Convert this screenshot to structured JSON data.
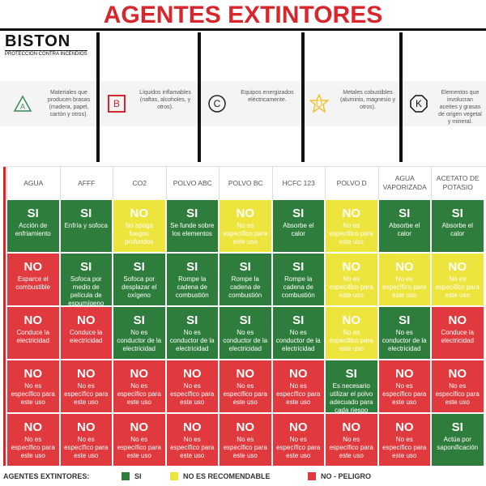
{
  "header": {
    "title": "AGENTES EXTINTORES",
    "logo": "BISTON",
    "logo_subtitle": "PROTECCION CONTRA INCENDIOS"
  },
  "classes": [
    {
      "letter": "A",
      "description": "Materiales que producen brasas (madera, papel, cartón y otros).",
      "color": "#3a8a5a"
    },
    {
      "letter": "B",
      "description": "Líquidos inflamables (naftas, alcoholes, y otros).",
      "color": "#d8262c"
    },
    {
      "letter": "C",
      "description": "Equipos energizados eléctricamente.",
      "color": "#222222"
    },
    {
      "letter": "D",
      "description": "Metales cobustibles (aluminio, magnesio y otros).",
      "color": "#f2c230"
    },
    {
      "letter": "K",
      "description": "Elementos que involucran aceites y grasas de origen vegetal y mineral.",
      "color": "#111111"
    }
  ],
  "table": {
    "columns": [
      "AGUA",
      "AFFF",
      "CO2",
      "POLVO ABC",
      "POLVO BC",
      "HCFC 123",
      "POLVO D",
      "AGUA VAPORIZADA",
      "ACETATO DE POTASIO"
    ],
    "rows": [
      [
        {
          "status": "SI",
          "text": "Acción de enfriamiento",
          "color": "#2f7d3c"
        },
        {
          "status": "SI",
          "text": "Enfría y sofoca",
          "color": "#2f7d3c"
        },
        {
          "status": "NO",
          "text": "No apaga fuegos profundos",
          "color": "#eee43e"
        },
        {
          "status": "SI",
          "text": "Se funde sobre los elementos",
          "color": "#2f7d3c"
        },
        {
          "status": "NO",
          "text": "No es específico para este uso",
          "color": "#eee43e"
        },
        {
          "status": "SI",
          "text": "Absorbe el calor",
          "color": "#2f7d3c"
        },
        {
          "status": "NO",
          "text": "No es específico para este uso",
          "color": "#eee43e"
        },
        {
          "status": "SI",
          "text": "Absorbe el calor",
          "color": "#2f7d3c"
        },
        {
          "status": "SI",
          "text": "Absorbe el calor",
          "color": "#2f7d3c"
        }
      ],
      [
        {
          "status": "NO",
          "text": "Esparce el combustible",
          "color": "#e03a3e"
        },
        {
          "status": "SI",
          "text": "Sofoca por medio de película de espumígeno",
          "color": "#2f7d3c"
        },
        {
          "status": "SI",
          "text": "Sofoca por desplazar el oxígeno",
          "color": "#2f7d3c"
        },
        {
          "status": "SI",
          "text": "Rompe la cadena de combustión",
          "color": "#2f7d3c"
        },
        {
          "status": "SI",
          "text": "Rompe la cadena de combustión",
          "color": "#2f7d3c"
        },
        {
          "status": "SI",
          "text": "Rompe la cadena de combustión",
          "color": "#2f7d3c"
        },
        {
          "status": "NO",
          "text": "No es específico para este uso",
          "color": "#eee43e"
        },
        {
          "status": "NO",
          "text": "No es específico para este uso",
          "color": "#eee43e"
        },
        {
          "status": "NO",
          "text": "No es específico para este uso",
          "color": "#eee43e"
        }
      ],
      [
        {
          "status": "NO",
          "text": "Conduce la electricidad",
          "color": "#e03a3e"
        },
        {
          "status": "NO",
          "text": "Conduce la electricidad",
          "color": "#e03a3e"
        },
        {
          "status": "SI",
          "text": "No es conductor de la electricidad",
          "color": "#2f7d3c"
        },
        {
          "status": "SI",
          "text": "No es conductor de la electricidad",
          "color": "#2f7d3c"
        },
        {
          "status": "SI",
          "text": "No es conductor de la electricidad",
          "color": "#2f7d3c"
        },
        {
          "status": "SI",
          "text": "No es conductor de la electricidad",
          "color": "#2f7d3c"
        },
        {
          "status": "NO",
          "text": "No es específico para este uso",
          "color": "#eee43e"
        },
        {
          "status": "SI",
          "text": "No es conductor de la electricidad",
          "color": "#2f7d3c"
        },
        {
          "status": "NO",
          "text": "Conduce la electricidad",
          "color": "#e03a3e"
        }
      ],
      [
        {
          "status": "NO",
          "text": "No es específico para este uso",
          "color": "#e03a3e"
        },
        {
          "status": "NO",
          "text": "No es específico para este uso",
          "color": "#e03a3e"
        },
        {
          "status": "NO",
          "text": "No es específico para este uso",
          "color": "#e03a3e"
        },
        {
          "status": "NO",
          "text": "No es específico para este uso",
          "color": "#e03a3e"
        },
        {
          "status": "NO",
          "text": "No es específico para este uso",
          "color": "#e03a3e"
        },
        {
          "status": "NO",
          "text": "No es específico para este uso",
          "color": "#e03a3e"
        },
        {
          "status": "SI",
          "text": "Es necesario utilizar el polvo adecuado para cada riesgo",
          "color": "#2f7d3c"
        },
        {
          "status": "NO",
          "text": "No es específico para este uso",
          "color": "#e03a3e"
        },
        {
          "status": "NO",
          "text": "No es específico para este uso",
          "color": "#e03a3e"
        }
      ],
      [
        {
          "status": "NO",
          "text": "No es específico para este uso",
          "color": "#e03a3e"
        },
        {
          "status": "NO",
          "text": "No es específico para este uso",
          "color": "#e03a3e"
        },
        {
          "status": "NO",
          "text": "No es específico para este uso",
          "color": "#e03a3e"
        },
        {
          "status": "NO",
          "text": "No es específico para este uso",
          "color": "#e03a3e"
        },
        {
          "status": "NO",
          "text": "No es específico para este uso",
          "color": "#e03a3e"
        },
        {
          "status": "NO",
          "text": "No es específico para este uso",
          "color": "#e03a3e"
        },
        {
          "status": "NO",
          "text": "No es específico para este uso",
          "color": "#e03a3e"
        },
        {
          "status": "NO",
          "text": "No es específico para este uso",
          "color": "#e03a3e"
        },
        {
          "status": "SI",
          "text": "Actúa por saponificación",
          "color": "#2f7d3c"
        }
      ]
    ]
  },
  "legend": {
    "title": "AGENTES EXTINTORES:",
    "items": [
      {
        "label": "SI",
        "color": "#2f7d3c"
      },
      {
        "label": "NO ES RECOMENDABLE",
        "color": "#eee43e"
      },
      {
        "label": "NO - PELIGRO",
        "color": "#e03a3e"
      }
    ]
  }
}
